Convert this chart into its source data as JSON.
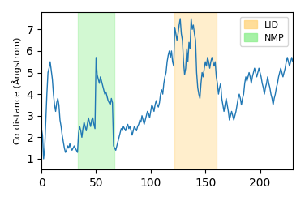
{
  "ylabel": "Cα distance (Ångstrom)",
  "xlim": [
    0,
    230
  ],
  "ylim": [
    0.5,
    7.8
  ],
  "yticks": [
    1,
    2,
    3,
    4,
    5,
    6,
    7
  ],
  "xticks": [
    0,
    50,
    100,
    150,
    200
  ],
  "nmp_region": [
    33,
    67
  ],
  "lid_region": [
    122,
    160
  ],
  "nmp_color": "#90ee90",
  "lid_color": "#ffd580",
  "nmp_alpha": 0.4,
  "lid_alpha": 0.4,
  "line_color": "#1f77b4",
  "line_width": 1.0,
  "figsize": [
    3.76,
    2.48
  ],
  "dpi": 100,
  "y_values": [
    2.4,
    2.1,
    1.0,
    1.5,
    2.8,
    4.0,
    5.0,
    5.2,
    5.5,
    5.1,
    4.7,
    4.0,
    3.5,
    3.2,
    3.6,
    3.8,
    3.5,
    2.8,
    2.5,
    2.1,
    1.8,
    1.5,
    1.3,
    1.4,
    1.6,
    1.5,
    1.7,
    1.5,
    1.4,
    1.5,
    1.6,
    1.5,
    1.4,
    1.3,
    2.2,
    2.5,
    2.3,
    2.0,
    2.4,
    2.7,
    2.5,
    2.3,
    2.6,
    2.9,
    2.7,
    2.5,
    2.8,
    2.9,
    2.6,
    2.4,
    5.7,
    4.9,
    4.7,
    4.5,
    4.8,
    4.6,
    4.4,
    4.2,
    4.0,
    4.1,
    3.9,
    3.7,
    3.6,
    3.5,
    3.8,
    3.6,
    1.6,
    1.5,
    1.4,
    1.6,
    1.8,
    2.0,
    2.2,
    2.4,
    2.3,
    2.5,
    2.4,
    2.3,
    2.5,
    2.6,
    2.4,
    2.5,
    2.3,
    2.1,
    2.3,
    2.5,
    2.4,
    2.3,
    2.5,
    2.6,
    2.8,
    2.7,
    3.0,
    2.8,
    2.6,
    2.8,
    3.0,
    3.2,
    3.1,
    2.9,
    3.2,
    3.5,
    3.4,
    3.2,
    3.5,
    3.7,
    3.5,
    3.4,
    3.6,
    4.0,
    4.2,
    4.0,
    4.5,
    4.8,
    5.0,
    5.5,
    5.8,
    6.0,
    5.7,
    6.0,
    5.5,
    5.3,
    7.1,
    6.8,
    6.5,
    6.8,
    7.2,
    7.5,
    6.8,
    6.5,
    5.5,
    4.9,
    5.2,
    6.1,
    5.5,
    6.4,
    6.1,
    7.5,
    7.0,
    7.2,
    6.8,
    6.5,
    5.0,
    4.3,
    4.0,
    3.8,
    4.5,
    5.0,
    4.8,
    5.2,
    5.5,
    5.3,
    5.7,
    5.5,
    5.2,
    5.5,
    5.7,
    5.5,
    5.3,
    5.5,
    4.8,
    4.5,
    4.0,
    4.3,
    4.5,
    3.8,
    3.5,
    3.2,
    3.5,
    3.8,
    3.5,
    3.2,
    2.8,
    3.0,
    3.2,
    3.0,
    2.8,
    3.0,
    3.2,
    3.5,
    3.8,
    4.0,
    3.8,
    3.5,
    3.8,
    4.0,
    4.5,
    4.8,
    4.6,
    4.8,
    5.0,
    4.8,
    4.5,
    4.8,
    5.0,
    5.2,
    5.0,
    4.8,
    5.0,
    5.2,
    5.0,
    4.8,
    4.5,
    4.3,
    4.0,
    4.3,
    4.5,
    4.8,
    4.5,
    4.3,
    4.0,
    3.8,
    3.5,
    3.8,
    4.0,
    4.3,
    4.5,
    4.8,
    5.0,
    5.2,
    5.0,
    4.8,
    5.0,
    5.2,
    5.5,
    5.7,
    5.5,
    5.3,
    5.5,
    5.7,
    5.5
  ]
}
